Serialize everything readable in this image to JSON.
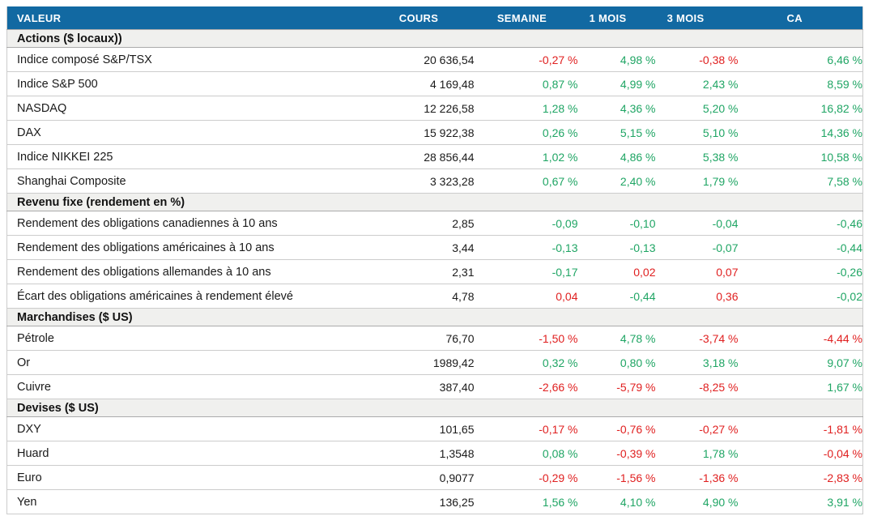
{
  "chart_data": {
    "type": "table",
    "columns": [
      "VALEUR",
      "COURS",
      "SEMAINE",
      "1 MOIS",
      "3 MOIS",
      "CA"
    ],
    "sections": [
      {
        "title": "Actions ($ locaux))",
        "rows": [
          {
            "label": "Indice composé S&P/TSX",
            "cours": "20 636,54",
            "changes": [
              {
                "text": "-0,27 %",
                "tone": "neg"
              },
              {
                "text": "4,98 %",
                "tone": "pos"
              },
              {
                "text": "-0,38 %",
                "tone": "neg"
              },
              {
                "text": "6,46 %",
                "tone": "pos"
              }
            ]
          },
          {
            "label": "Indice S&P 500",
            "cours": "4 169,48",
            "changes": [
              {
                "text": "0,87 %",
                "tone": "pos"
              },
              {
                "text": "4,99 %",
                "tone": "pos"
              },
              {
                "text": "2,43 %",
                "tone": "pos"
              },
              {
                "text": "8,59 %",
                "tone": "pos"
              }
            ]
          },
          {
            "label": "NASDAQ",
            "cours": "12 226,58",
            "changes": [
              {
                "text": "1,28 %",
                "tone": "pos"
              },
              {
                "text": "4,36 %",
                "tone": "pos"
              },
              {
                "text": "5,20 %",
                "tone": "pos"
              },
              {
                "text": "16,82 %",
                "tone": "pos"
              }
            ]
          },
          {
            "label": "DAX",
            "cours": "15 922,38",
            "changes": [
              {
                "text": "0,26 %",
                "tone": "pos"
              },
              {
                "text": "5,15 %",
                "tone": "pos"
              },
              {
                "text": "5,10 %",
                "tone": "pos"
              },
              {
                "text": "14,36 %",
                "tone": "pos"
              }
            ]
          },
          {
            "label": "Indice NIKKEI 225",
            "cours": "28 856,44",
            "changes": [
              {
                "text": "1,02 %",
                "tone": "pos"
              },
              {
                "text": "4,86 %",
                "tone": "pos"
              },
              {
                "text": "5,38 %",
                "tone": "pos"
              },
              {
                "text": "10,58 %",
                "tone": "pos"
              }
            ]
          },
          {
            "label": "Shanghai Composite",
            "cours": "3 323,28",
            "changes": [
              {
                "text": "0,67 %",
                "tone": "pos"
              },
              {
                "text": "2,40 %",
                "tone": "pos"
              },
              {
                "text": "1,79 %",
                "tone": "pos"
              },
              {
                "text": "7,58 %",
                "tone": "pos"
              }
            ]
          }
        ]
      },
      {
        "title": "Revenu fixe (rendement en %)",
        "rows": [
          {
            "label": "Rendement des obligations canadiennes à 10 ans",
            "cours": "2,85",
            "changes": [
              {
                "text": "-0,09",
                "tone": "pos"
              },
              {
                "text": "-0,10",
                "tone": "pos"
              },
              {
                "text": "-0,04",
                "tone": "pos"
              },
              {
                "text": "-0,46",
                "tone": "pos"
              }
            ]
          },
          {
            "label": "Rendement des obligations américaines à 10 ans",
            "cours": "3,44",
            "changes": [
              {
                "text": "-0,13",
                "tone": "pos"
              },
              {
                "text": "-0,13",
                "tone": "pos"
              },
              {
                "text": "-0,07",
                "tone": "pos"
              },
              {
                "text": "-0,44",
                "tone": "pos"
              }
            ]
          },
          {
            "label": "Rendement des obligations allemandes à 10 ans",
            "cours": "2,31",
            "changes": [
              {
                "text": "-0,17",
                "tone": "pos"
              },
              {
                "text": "0,02",
                "tone": "neg"
              },
              {
                "text": "0,07",
                "tone": "neg"
              },
              {
                "text": "-0,26",
                "tone": "pos"
              }
            ]
          },
          {
            "label": "Écart des obligations américaines à rendement élevé",
            "cours": "4,78",
            "changes": [
              {
                "text": "0,04",
                "tone": "neg"
              },
              {
                "text": "-0,44",
                "tone": "pos"
              },
              {
                "text": "0,36",
                "tone": "neg"
              },
              {
                "text": "-0,02",
                "tone": "pos"
              }
            ]
          }
        ]
      },
      {
        "title": "Marchandises ($ US)",
        "rows": [
          {
            "label": "Pétrole",
            "cours": "76,70",
            "changes": [
              {
                "text": "-1,50 %",
                "tone": "neg"
              },
              {
                "text": "4,78 %",
                "tone": "pos"
              },
              {
                "text": "-3,74 %",
                "tone": "neg"
              },
              {
                "text": "-4,44 %",
                "tone": "neg"
              }
            ]
          },
          {
            "label": "Or",
            "cours": "1989,42",
            "changes": [
              {
                "text": "0,32 %",
                "tone": "pos"
              },
              {
                "text": "0,80 %",
                "tone": "pos"
              },
              {
                "text": "3,18 %",
                "tone": "pos"
              },
              {
                "text": "9,07 %",
                "tone": "pos"
              }
            ]
          },
          {
            "label": "Cuivre",
            "cours": "387,40",
            "changes": [
              {
                "text": "-2,66 %",
                "tone": "neg"
              },
              {
                "text": "-5,79 %",
                "tone": "neg"
              },
              {
                "text": "-8,25 %",
                "tone": "neg"
              },
              {
                "text": "1,67 %",
                "tone": "pos"
              }
            ]
          }
        ]
      },
      {
        "title": "Devises ($ US)",
        "rows": [
          {
            "label": "DXY",
            "cours": "101,65",
            "changes": [
              {
                "text": "-0,17 %",
                "tone": "neg"
              },
              {
                "text": "-0,76 %",
                "tone": "neg"
              },
              {
                "text": "-0,27 %",
                "tone": "neg"
              },
              {
                "text": "-1,81 %",
                "tone": "neg"
              }
            ]
          },
          {
            "label": "Huard",
            "cours": "1,3548",
            "changes": [
              {
                "text": "0,08 %",
                "tone": "pos"
              },
              {
                "text": "-0,39 %",
                "tone": "neg"
              },
              {
                "text": "1,78 %",
                "tone": "pos"
              },
              {
                "text": "-0,04 %",
                "tone": "neg"
              }
            ]
          },
          {
            "label": "Euro",
            "cours": "0,9077",
            "changes": [
              {
                "text": "-0,29 %",
                "tone": "neg"
              },
              {
                "text": "-1,56 %",
                "tone": "neg"
              },
              {
                "text": "-1,36 %",
                "tone": "neg"
              },
              {
                "text": "-2,83 %",
                "tone": "neg"
              }
            ]
          },
          {
            "label": "Yen",
            "cours": "136,25",
            "changes": [
              {
                "text": "1,56 %",
                "tone": "pos"
              },
              {
                "text": "4,10 %",
                "tone": "pos"
              },
              {
                "text": "4,90 %",
                "tone": "pos"
              },
              {
                "text": "3,91 %",
                "tone": "pos"
              }
            ]
          }
        ]
      }
    ]
  },
  "colors": {
    "header_bg": "#1269A2",
    "positive": "#1FA564",
    "negative": "#E02020",
    "section_bg": "#F0F0EE",
    "row_border": "#CCCCCC",
    "section_border": "#ABABAB",
    "text": "#1A1A1A",
    "header_text": "#FFFFFF"
  }
}
